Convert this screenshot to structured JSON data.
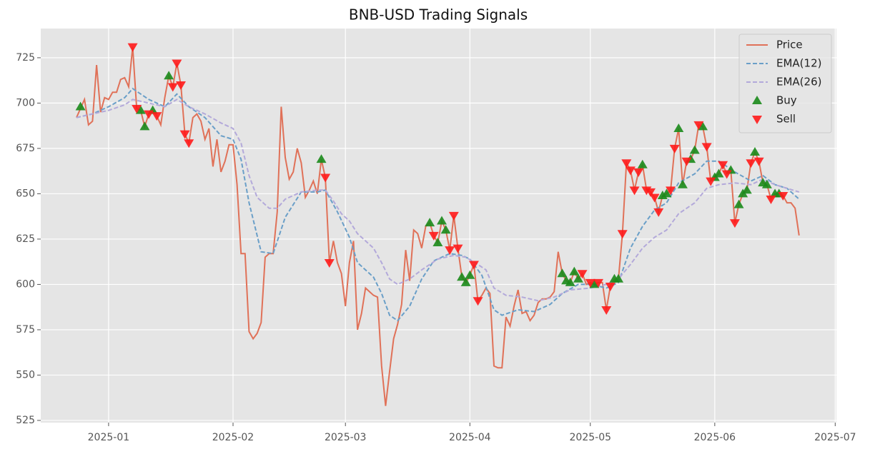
{
  "chart_data": {
    "type": "line",
    "title": "BNB-USD Trading Signals",
    "xlim": [
      -16.9,
      181.3
    ],
    "ylim": [
      523.8,
      741.1
    ],
    "xticks": [
      {
        "value": 0,
        "label": "2025-01"
      },
      {
        "value": 31,
        "label": "2025-02"
      },
      {
        "value": 59,
        "label": "2025-03"
      },
      {
        "value": 90,
        "label": "2025-04"
      },
      {
        "value": 120,
        "label": "2025-05"
      },
      {
        "value": 151,
        "label": "2025-06"
      },
      {
        "value": 181,
        "label": "2025-07"
      }
    ],
    "yticks": [
      525,
      550,
      575,
      600,
      625,
      650,
      675,
      700,
      725
    ],
    "grid": true,
    "legend": "upper right",
    "series": [
      {
        "name": "Price",
        "color": "#e07158",
        "style": "solid",
        "x": [
          -8,
          -7,
          -6,
          -5,
          -4,
          -3,
          -2,
          -1,
          0,
          1,
          2,
          3,
          4,
          5,
          6,
          7,
          8,
          9,
          10,
          11,
          12,
          13,
          14,
          15,
          16,
          17,
          18,
          19,
          20,
          21,
          22,
          23,
          24,
          25,
          26,
          27,
          28,
          29,
          30,
          31,
          32,
          33,
          34,
          35,
          36,
          37,
          38,
          39,
          40,
          41,
          42,
          43,
          44,
          45,
          46,
          47,
          48,
          49,
          50,
          51,
          52,
          53,
          54,
          55,
          56,
          57,
          58,
          59,
          60,
          61,
          62,
          63,
          64,
          65,
          66,
          67,
          68,
          69,
          70,
          71,
          72,
          73,
          74,
          75,
          76,
          77,
          78,
          79,
          80,
          81,
          82,
          83,
          84,
          85,
          86,
          87,
          88,
          89,
          90,
          91,
          92,
          93,
          94,
          95,
          96,
          97,
          98,
          99,
          100,
          101,
          102,
          103,
          104,
          105,
          106,
          107,
          108,
          109,
          110,
          111,
          112,
          113,
          114,
          115,
          116,
          117,
          118,
          119,
          120,
          121,
          122,
          123,
          124,
          125,
          126,
          127,
          128,
          129,
          130,
          131,
          132,
          133,
          134,
          135,
          136,
          137,
          138,
          139,
          140,
          141,
          142,
          143,
          144,
          145,
          146,
          147,
          148,
          149,
          150,
          151,
          152,
          153,
          154,
          155,
          156,
          157,
          158,
          159,
          160,
          161,
          162,
          163,
          164,
          165,
          166,
          167,
          168,
          169,
          170,
          171,
          172
        ],
        "values": [
          692,
          697,
          702,
          688,
          690,
          721,
          695,
          703,
          702,
          706,
          706,
          713,
          714,
          709,
          731,
          697,
          696,
          687,
          694,
          696,
          693,
          688,
          703,
          715,
          709,
          722,
          710,
          683,
          678,
          692,
          694,
          690,
          680,
          686,
          665,
          680,
          662,
          668,
          677,
          677,
          655,
          617,
          617,
          574,
          570,
          573,
          579,
          615,
          617,
          617,
          640,
          698,
          670,
          658,
          662,
          675,
          667,
          648,
          652,
          657,
          650,
          669,
          659,
          612,
          624,
          612,
          606,
          588,
          612,
          624,
          575,
          584,
          598,
          596,
          594,
          593,
          555,
          533,
          552,
          570,
          578,
          589,
          619,
          602,
          630,
          628,
          620,
          632,
          634,
          627,
          623,
          635,
          630,
          619,
          638,
          620,
          604,
          601,
          605,
          611,
          591,
          594,
          598,
          595,
          555,
          554,
          554,
          582,
          577,
          588,
          597,
          584,
          585,
          580,
          583,
          590,
          592,
          592,
          593,
          596,
          618,
          606,
          602,
          601,
          607,
          603,
          606,
          600,
          601,
          600,
          601,
          601,
          586,
          599,
          603,
          603,
          628,
          667,
          663,
          652,
          662,
          666,
          652,
          651,
          648,
          640,
          649,
          650,
          652,
          675,
          686,
          655,
          668,
          669,
          674,
          688,
          687,
          676,
          657,
          659,
          661,
          666,
          661,
          663,
          634,
          644,
          650,
          652,
          667,
          673,
          668,
          656,
          655,
          647,
          650,
          650,
          649,
          645,
          645,
          642,
          627
        ]
      },
      {
        "name": "EMA(12)",
        "color": "#6a9fc8",
        "style": "dashed",
        "x": [
          -8,
          -4,
          0,
          4,
          6,
          10,
          14,
          17,
          20,
          24,
          28,
          31,
          33,
          35,
          38,
          41,
          44,
          48,
          52,
          54,
          57,
          60,
          62,
          66,
          68,
          70,
          72,
          75,
          78,
          81,
          85,
          88,
          90,
          93,
          96,
          98,
          102,
          106,
          110,
          113,
          117,
          120,
          124,
          127,
          130,
          133,
          136,
          139,
          142,
          146,
          149,
          152,
          156,
          160,
          163,
          166,
          169,
          172
        ],
        "values": [
          692,
          694,
          698,
          703,
          708,
          702,
          698,
          705,
          698,
          692,
          682,
          680,
          669,
          645,
          618,
          617,
          637,
          651,
          651,
          652,
          640,
          626,
          612,
          604,
          595,
          583,
          580,
          588,
          603,
          613,
          617,
          616,
          614,
          605,
          586,
          583,
          586,
          585,
          589,
          595,
          600,
          600,
          598,
          601,
          620,
          632,
          641,
          645,
          656,
          661,
          668,
          668,
          662,
          657,
          660,
          655,
          653,
          647
        ]
      },
      {
        "name": "EMA(26)",
        "color": "#b3a9da",
        "style": "dashed",
        "x": [
          -8,
          -4,
          0,
          4,
          6,
          10,
          14,
          17,
          20,
          24,
          28,
          31,
          33,
          35,
          37,
          40,
          42,
          44,
          48,
          52,
          54,
          56,
          58,
          60,
          62,
          66,
          68,
          70,
          72,
          75,
          78,
          82,
          86,
          89,
          92,
          94,
          96,
          99,
          103,
          107,
          111,
          115,
          120,
          124,
          127,
          130,
          133,
          136,
          139,
          142,
          146,
          149,
          152,
          156,
          160,
          163,
          166,
          169,
          172
        ],
        "values": [
          692,
          694,
          696,
          699,
          702,
          700,
          698,
          702,
          698,
          694,
          689,
          686,
          678,
          660,
          648,
          642,
          642,
          647,
          651,
          652,
          652,
          646,
          639,
          635,
          628,
          620,
          612,
          603,
          600,
          603,
          608,
          614,
          616,
          615,
          611,
          608,
          598,
          594,
          593,
          591,
          593,
          597,
          598,
          600,
          603,
          611,
          620,
          626,
          630,
          639,
          645,
          653,
          655,
          656,
          655,
          658,
          655,
          653,
          651
        ]
      },
      {
        "name": "Buy",
        "color": "#1a8a1a",
        "style": "marker-up",
        "x": [
          -7,
          8,
          9,
          11,
          15,
          53,
          80,
          82,
          83,
          84,
          88,
          89,
          90,
          113,
          114,
          115,
          116,
          117,
          121,
          126,
          127,
          133,
          138,
          139,
          142,
          143,
          145,
          146,
          148,
          151,
          152,
          155,
          157,
          158,
          159,
          161,
          163,
          164,
          166,
          167
        ],
        "values": [
          698,
          696,
          687,
          696,
          715,
          669,
          634,
          623,
          635,
          630,
          604,
          601,
          605,
          606,
          602,
          601,
          607,
          603,
          600,
          603,
          603,
          666,
          649,
          650,
          686,
          655,
          669,
          674,
          687,
          659,
          661,
          663,
          644,
          650,
          652,
          673,
          656,
          655,
          650,
          650
        ]
      },
      {
        "name": "Sell",
        "color": "#ff1a1a",
        "style": "marker-down",
        "x": [
          6,
          7,
          10,
          12,
          16,
          17,
          18,
          19,
          20,
          54,
          55,
          81,
          85,
          86,
          87,
          91,
          92,
          118,
          120,
          122,
          124,
          125,
          128,
          129,
          130,
          131,
          132,
          134,
          135,
          136,
          137,
          140,
          141,
          144,
          147,
          149,
          150,
          153,
          154,
          156,
          160,
          162,
          165,
          168
        ],
        "values": [
          731,
          697,
          694,
          693,
          709,
          722,
          710,
          683,
          678,
          659,
          612,
          627,
          619,
          638,
          620,
          611,
          591,
          606,
          601,
          601,
          586,
          599,
          628,
          667,
          663,
          652,
          662,
          652,
          651,
          648,
          640,
          652,
          675,
          668,
          688,
          676,
          657,
          666,
          661,
          634,
          667,
          668,
          647,
          649
        ]
      }
    ]
  }
}
